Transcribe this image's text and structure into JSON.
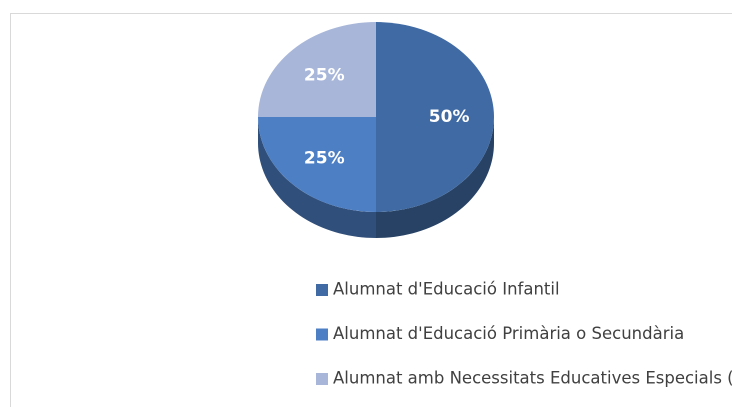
{
  "chart_data": {
    "type": "pie",
    "categories": [
      "Alumnat d'Educació Infantil",
      "Alumnat d'Educació Primària o Secundària",
      "Alumnat amb Necessitats Educatives Especials (NEE)"
    ],
    "values": [
      50,
      25,
      25
    ],
    "value_labels": [
      "50%",
      "25%",
      "25%"
    ],
    "colors": [
      "#3f6aa3",
      "#4d7fc4",
      "#a7b6d9"
    ],
    "legend": "bottom"
  }
}
